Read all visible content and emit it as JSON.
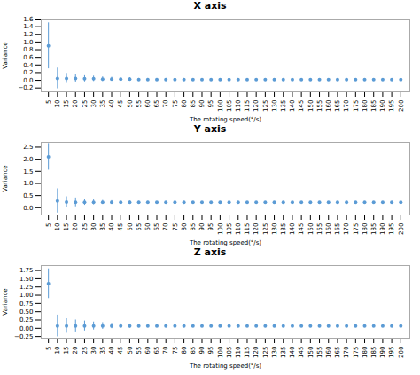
{
  "chart_data": [
    {
      "type": "scatter",
      "title": "X axis",
      "xlabel": "The rotating speed(°/s)",
      "ylabel": "Variance",
      "x": [
        5,
        10,
        15,
        20,
        25,
        30,
        35,
        40,
        45,
        50,
        55,
        60,
        65,
        70,
        75,
        80,
        85,
        90,
        95,
        100,
        105,
        110,
        115,
        120,
        125,
        130,
        135,
        140,
        145,
        150,
        155,
        160,
        165,
        170,
        175,
        180,
        185,
        190,
        195,
        200
      ],
      "values": [
        0.9,
        0.05,
        0.05,
        0.05,
        0.04,
        0.04,
        0.03,
        0.03,
        0.03,
        0.03,
        0.02,
        0.02,
        0.02,
        0.02,
        0.02,
        0.02,
        0.02,
        0.02,
        0.02,
        0.02,
        0.02,
        0.02,
        0.02,
        0.02,
        0.02,
        0.02,
        0.02,
        0.02,
        0.02,
        0.02,
        0.02,
        0.02,
        0.02,
        0.02,
        0.02,
        0.02,
        0.02,
        0.02,
        0.02,
        0.02
      ],
      "errors": [
        0.6,
        0.27,
        0.13,
        0.1,
        0.08,
        0.07,
        0.06,
        0.05,
        0.04,
        0.04,
        0.03,
        0.03,
        0.03,
        0.03,
        0.02,
        0.02,
        0.02,
        0.02,
        0.02,
        0.02,
        0.02,
        0.01,
        0.01,
        0.01,
        0.01,
        0.01,
        0.01,
        0.01,
        0.01,
        0.01,
        0.01,
        0.01,
        0.01,
        0.01,
        0.01,
        0.01,
        0.01,
        0.01,
        0.01,
        0.01
      ],
      "color": "#5b9bd5",
      "marker": "circle",
      "grid": false,
      "xlim": [
        1,
        205
      ],
      "xticks": [
        5,
        10,
        15,
        20,
        25,
        30,
        35,
        40,
        45,
        50,
        55,
        60,
        65,
        70,
        75,
        80,
        85,
        90,
        95,
        100,
        105,
        110,
        115,
        120,
        125,
        130,
        135,
        140,
        145,
        150,
        155,
        160,
        165,
        170,
        175,
        180,
        185,
        190,
        195,
        200
      ],
      "ylim": [
        -0.3,
        1.6
      ],
      "yticks": [
        {
          "value": -0.2,
          "label": "−0.2"
        },
        {
          "value": 0,
          "label": "0.0"
        },
        0.2,
        0.4,
        0.6,
        0.8,
        {
          "value": 1,
          "label": "1.0"
        },
        1.2,
        1.4,
        1.6
      ]
    },
    {
      "type": "scatter",
      "title": "Y axis",
      "xlabel": "The rotating speed(°/s)",
      "ylabel": "Variance",
      "x": [
        5,
        10,
        15,
        20,
        25,
        30,
        35,
        40,
        45,
        50,
        55,
        60,
        65,
        70,
        75,
        80,
        85,
        90,
        95,
        100,
        105,
        110,
        115,
        120,
        125,
        130,
        135,
        140,
        145,
        150,
        155,
        160,
        165,
        170,
        175,
        180,
        185,
        190,
        195,
        200
      ],
      "values": [
        2.1,
        0.28,
        0.23,
        0.22,
        0.22,
        0.22,
        0.22,
        0.22,
        0.22,
        0.22,
        0.22,
        0.22,
        0.22,
        0.22,
        0.22,
        0.22,
        0.22,
        0.22,
        0.22,
        0.22,
        0.22,
        0.22,
        0.22,
        0.22,
        0.22,
        0.22,
        0.22,
        0.22,
        0.22,
        0.22,
        0.22,
        0.22,
        0.22,
        0.22,
        0.22,
        0.22,
        0.22,
        0.22,
        0.22,
        0.22
      ],
      "errors": [
        0.55,
        0.5,
        0.22,
        0.18,
        0.12,
        0.1,
        0.08,
        0.07,
        0.06,
        0.05,
        0.04,
        0.04,
        0.03,
        0.03,
        0.03,
        0.02,
        0.02,
        0.02,
        0.02,
        0.02,
        0.02,
        0.02,
        0.02,
        0.02,
        0.02,
        0.02,
        0.02,
        0.02,
        0.02,
        0.02,
        0.02,
        0.02,
        0.02,
        0.02,
        0.02,
        0.02,
        0.02,
        0.02,
        0.02,
        0.02
      ],
      "color": "#5b9bd5",
      "marker": "circle",
      "grid": false,
      "xlim": [
        1,
        205
      ],
      "xticks": [
        5,
        10,
        15,
        20,
        25,
        30,
        35,
        40,
        45,
        50,
        55,
        60,
        65,
        70,
        75,
        80,
        85,
        90,
        95,
        100,
        105,
        110,
        115,
        120,
        125,
        130,
        135,
        140,
        145,
        150,
        155,
        160,
        165,
        170,
        175,
        180,
        185,
        190,
        195,
        200
      ],
      "ylim": [
        -0.3,
        2.7
      ],
      "yticks": [
        {
          "value": 0,
          "label": "0.0"
        },
        0.5,
        {
          "value": 1,
          "label": "1.0"
        },
        1.5,
        {
          "value": 2,
          "label": "2.0"
        },
        2.5
      ]
    },
    {
      "type": "scatter",
      "title": "Z axis",
      "xlabel": "The rotating speed(°/s)",
      "ylabel": "Variance",
      "x": [
        5,
        10,
        15,
        20,
        25,
        30,
        35,
        40,
        45,
        50,
        55,
        60,
        65,
        70,
        75,
        80,
        85,
        90,
        95,
        100,
        105,
        110,
        115,
        120,
        125,
        130,
        135,
        140,
        145,
        150,
        155,
        160,
        165,
        170,
        175,
        180,
        185,
        190,
        195,
        200
      ],
      "values": [
        1.35,
        0.07,
        0.07,
        0.07,
        0.07,
        0.07,
        0.07,
        0.07,
        0.07,
        0.07,
        0.07,
        0.07,
        0.07,
        0.07,
        0.07,
        0.07,
        0.07,
        0.07,
        0.07,
        0.07,
        0.07,
        0.07,
        0.07,
        0.07,
        0.07,
        0.07,
        0.07,
        0.07,
        0.07,
        0.07,
        0.07,
        0.07,
        0.07,
        0.07,
        0.07,
        0.07,
        0.07,
        0.07,
        0.07,
        0.07
      ],
      "errors": [
        0.45,
        0.33,
        0.22,
        0.18,
        0.15,
        0.12,
        0.1,
        0.08,
        0.07,
        0.06,
        0.05,
        0.04,
        0.04,
        0.03,
        0.03,
        0.03,
        0.02,
        0.02,
        0.02,
        0.02,
        0.02,
        0.02,
        0.02,
        0.02,
        0.02,
        0.02,
        0.02,
        0.02,
        0.02,
        0.02,
        0.02,
        0.02,
        0.02,
        0.02,
        0.02,
        0.02,
        0.02,
        0.02,
        0.02,
        0.02
      ],
      "color": "#5b9bd5",
      "marker": "circle",
      "grid": false,
      "xlim": [
        1,
        205
      ],
      "xticks": [
        5,
        10,
        15,
        20,
        25,
        30,
        35,
        40,
        45,
        50,
        55,
        60,
        65,
        70,
        75,
        80,
        85,
        90,
        95,
        100,
        105,
        110,
        115,
        120,
        125,
        130,
        135,
        140,
        145,
        150,
        155,
        160,
        165,
        170,
        175,
        180,
        185,
        190,
        195,
        200
      ],
      "ylim": [
        -0.3,
        1.9
      ],
      "yticks": [
        {
          "value": -0.25,
          "label": "−0.25"
        },
        {
          "value": 0,
          "label": "0.00"
        },
        0.25,
        {
          "value": 0.5,
          "label": "0.50"
        },
        0.75,
        {
          "value": 1,
          "label": "1.00"
        },
        1.25,
        {
          "value": 1.5,
          "label": "1.50"
        },
        1.75
      ]
    }
  ]
}
